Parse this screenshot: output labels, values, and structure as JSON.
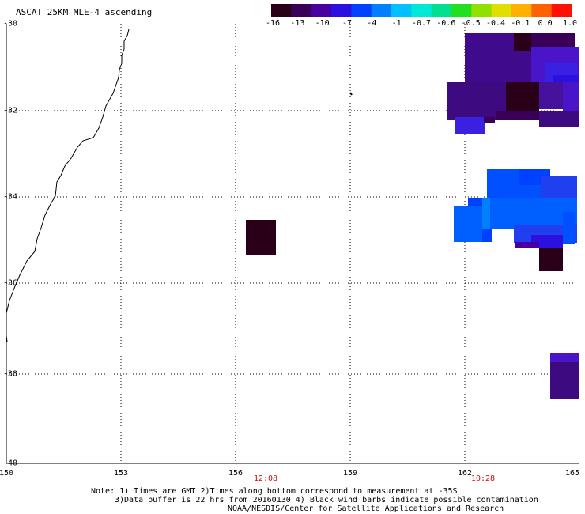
{
  "title": "ASCAT 25KM MLE-4 ascending",
  "colorbar": {
    "colors": [
      "#2a0018",
      "#3a0058",
      "#4a00a0",
      "#2c10e0",
      "#0040ff",
      "#0080ff",
      "#00c0ff",
      "#00e8d8",
      "#00e090",
      "#20e020",
      "#90e000",
      "#e0e000",
      "#ffb000",
      "#ff6000",
      "#ff1000"
    ],
    "tick_labels": [
      "-16",
      "-13",
      "-10",
      "-7",
      "-4",
      "-1",
      "-0.7",
      "-0.6",
      "-0.5",
      "-0.4",
      "-0.1",
      "0.0",
      "1.0"
    ]
  },
  "map": {
    "lat_labels": [
      "-30",
      "-32",
      "-34",
      "-36",
      "-38",
      "-40"
    ],
    "lon_labels": [
      "150",
      "153",
      "156",
      "159",
      "162",
      "165"
    ],
    "times": [
      "12:08",
      "10:28"
    ]
  },
  "notes": [
    "Note: 1) Times are GMT 2)Times along bottom correspond to measurement at -35S",
    "3)Data buffer is 22 hrs from 20160130 4) Black wind barbs indicate possible contamination",
    "NOAA/NESDIS/Center for Satellite Applications and Research"
  ]
}
